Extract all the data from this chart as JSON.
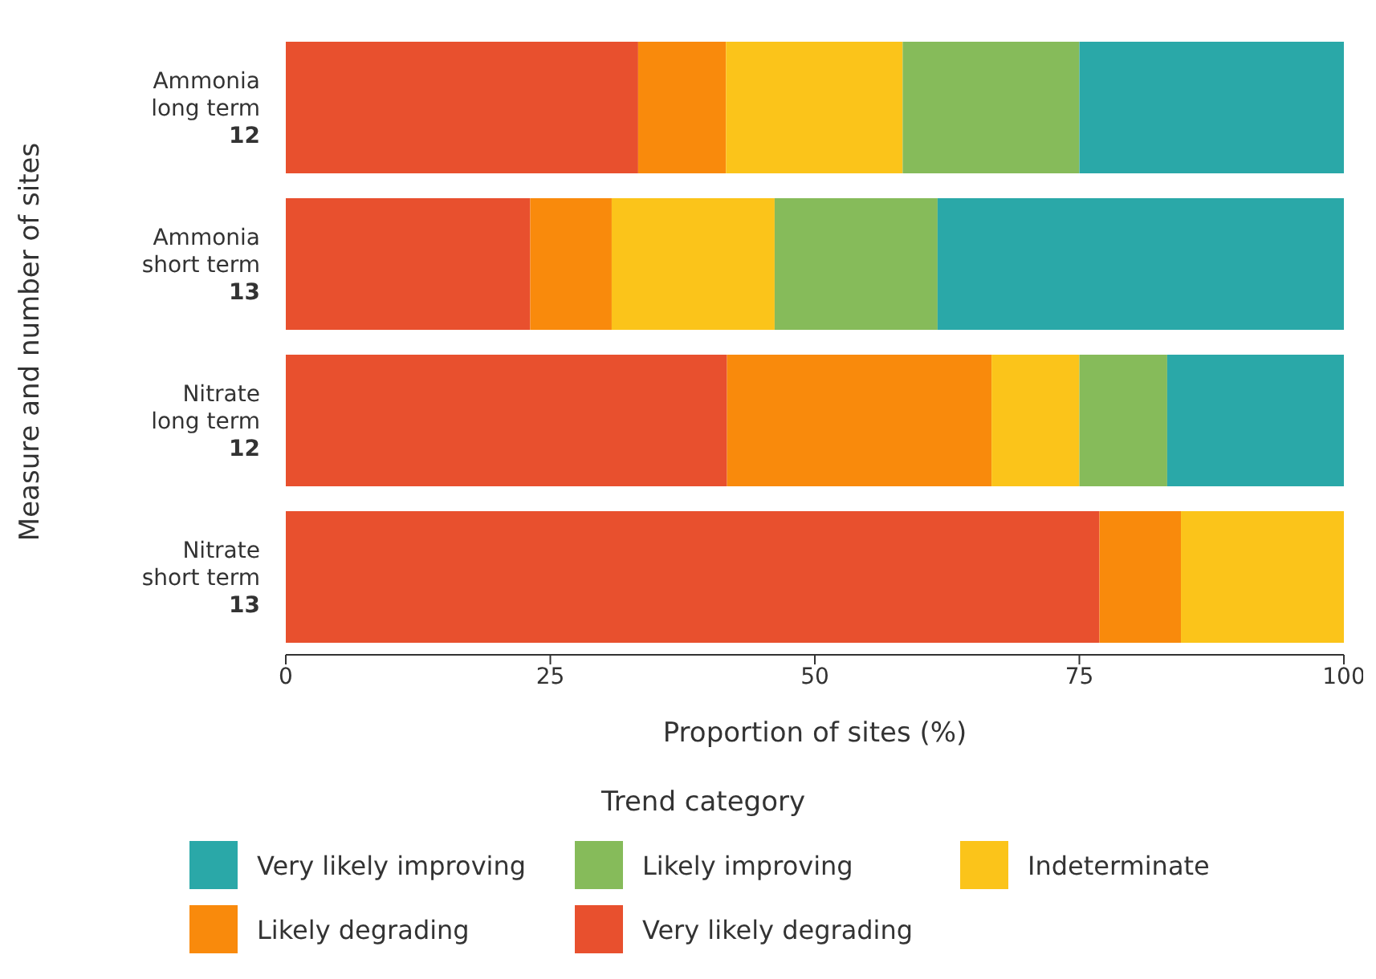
{
  "chart_data": {
    "type": "bar",
    "orientation": "horizontal",
    "stacked": true,
    "xlabel": "Proportion of sites (%)",
    "ylabel": "Measure and number of sites",
    "legend_title": "Trend category",
    "legend": "bottom",
    "categories": [
      "Ammonia\nlong term\n12",
      "Ammonia\nshort term\n13",
      "Nitrate\nlong term\n12",
      "Nitrate\nshort term\n13"
    ],
    "xlim": [
      0,
      100
    ],
    "xticks": [
      0,
      25,
      50,
      75,
      100
    ],
    "series": [
      {
        "name": "Very likely degrading",
        "color": "#e8502e",
        "values": [
          33.3,
          23.1,
          41.7,
          76.9
        ]
      },
      {
        "name": "Likely degrading",
        "color": "#f98a0c",
        "values": [
          8.3,
          7.7,
          25,
          7.7
        ]
      },
      {
        "name": "Indeterminate",
        "color": "#fbc41a",
        "values": [
          16.7,
          15.4,
          8.3,
          15.4
        ]
      },
      {
        "name": "Likely improving",
        "color": "#86bb5a",
        "values": [
          16.7,
          15.4,
          8.3,
          0
        ]
      },
      {
        "name": "Very likely improving",
        "color": "#2aa8a8",
        "values": [
          25,
          38.5,
          16.7,
          0
        ]
      }
    ]
  }
}
